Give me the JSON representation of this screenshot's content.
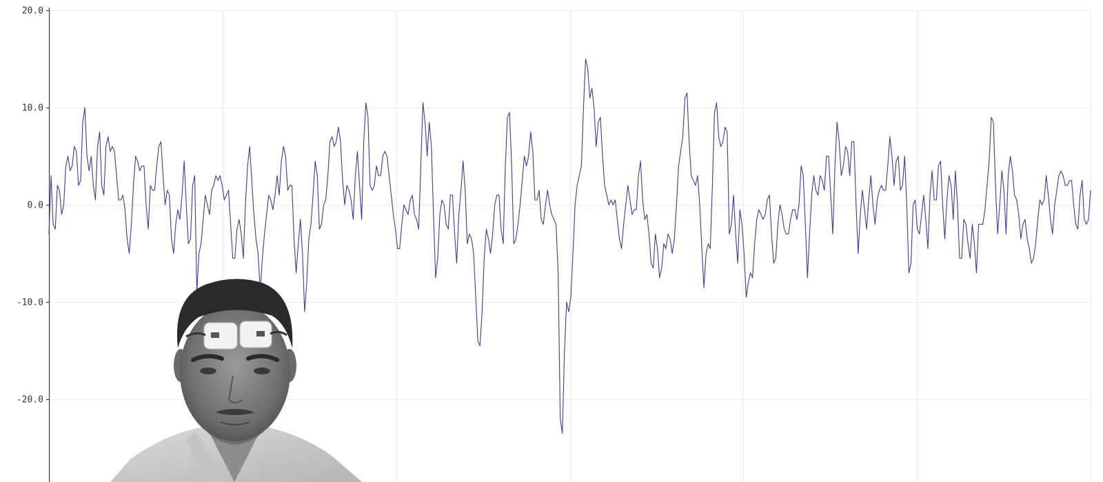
{
  "colors": {
    "series": "#3a3aa0",
    "grid": "#ececec",
    "axis": "#333333",
    "background": "#ffffff"
  },
  "overlay": {
    "icon": "webcam-person-photo"
  },
  "chart_data": {
    "type": "line",
    "title": "",
    "xlabel": "",
    "ylabel": "",
    "ylim": [
      -28.5,
      20
    ],
    "y_ticks": [
      20,
      10,
      0,
      -10,
      -20
    ],
    "y_tick_labels": [
      "20.0",
      "10.0",
      "0.0",
      "-10.0",
      "-20.0"
    ],
    "grid": true,
    "x_grid_count": 6,
    "series": [
      {
        "values": [
          -3,
          3,
          -2,
          -2.5,
          2,
          1.5,
          -1,
          0,
          4,
          5,
          3.5,
          4,
          6,
          5.5,
          2,
          2.5,
          8.5,
          10,
          5,
          3.5,
          5,
          2,
          0.5,
          6,
          7.5,
          2,
          1,
          6,
          7,
          5.5,
          6,
          5.5,
          3,
          0.5,
          0.5,
          1,
          -0.5,
          -3.5,
          -5,
          -2,
          2,
          5,
          4.5,
          3.5,
          4,
          4,
          0,
          -2.5,
          2,
          1.5,
          1.5,
          4,
          6,
          6.5,
          3,
          0,
          1.5,
          1,
          -3.5,
          -5,
          -2,
          -0.5,
          -1.5,
          1,
          4.5,
          0,
          -4,
          -3.5,
          2,
          3,
          -9,
          -5,
          -4,
          -1.5,
          1,
          0,
          -1,
          1.5,
          2,
          3,
          2.5,
          3,
          2,
          0.5,
          1,
          1.5,
          -2,
          -5.5,
          -5.5,
          -2.5,
          -1.5,
          -3,
          -5.5,
          0,
          4,
          6,
          2.5,
          -1,
          -3.5,
          -5,
          -9,
          -5.5,
          -3,
          -1,
          1,
          0.5,
          -0.5,
          1,
          3,
          1,
          4.5,
          6,
          5,
          1.5,
          2,
          2,
          -3.5,
          -7,
          -4,
          -1.5,
          -5,
          -11,
          -8,
          -3.5,
          -2,
          1,
          4.5,
          3,
          -2.5,
          -2,
          0,
          0.5,
          3,
          6.5,
          7,
          6,
          6.5,
          8,
          6.5,
          2.5,
          0,
          2,
          1.5,
          0.5,
          -1.5,
          3,
          5.5,
          2,
          -1.5,
          6.5,
          10.5,
          9,
          2,
          1.5,
          2,
          4,
          3,
          3,
          5,
          5.5,
          5,
          3,
          1,
          -1,
          -2.5,
          -4.5,
          -4.5,
          -2,
          0,
          -0.5,
          -1,
          0.5,
          1,
          -1,
          -1.5,
          -2.5,
          4,
          10.5,
          8.5,
          5,
          8.5,
          6,
          -1,
          -7.5,
          -5.5,
          -1,
          0.5,
          0,
          -2,
          -2.5,
          1,
          1,
          -3,
          -6,
          -1,
          1.5,
          4.5,
          1.5,
          -4,
          -3,
          -3.5,
          -5,
          -9.5,
          -14,
          -14.5,
          -11,
          -5.5,
          -2.5,
          -3.5,
          -5,
          -3,
          0,
          1,
          1,
          -2.5,
          -4,
          4,
          9,
          9.5,
          4,
          -4,
          -3.5,
          -2,
          0,
          2.5,
          5,
          4,
          5,
          7.5,
          5.5,
          0.5,
          0.5,
          1.5,
          -1.5,
          -2,
          0,
          1.5,
          0,
          -1,
          -1.5,
          -2,
          -7,
          -22,
          -23.5,
          -15,
          -10,
          -11,
          -9.5,
          -5,
          0,
          2,
          3,
          4,
          10,
          15,
          14,
          11,
          12,
          10,
          6,
          8.5,
          9,
          5,
          2,
          1,
          0,
          0.5,
          0,
          0.5,
          -1.5,
          -3.5,
          -4.5,
          -2,
          0,
          2,
          0.5,
          -1,
          -0.5,
          -0.5,
          3,
          4.5,
          0.5,
          -1.5,
          -1,
          -3,
          -6,
          -6.5,
          -3,
          -4.5,
          -7.5,
          -6.5,
          -4,
          -4.5,
          -3,
          -3.5,
          -5,
          -3.5,
          0,
          4,
          5.5,
          7,
          11,
          11.5,
          6.5,
          3,
          2.5,
          2,
          3,
          0,
          -4.5,
          -8.5,
          -5,
          -4,
          -4.5,
          2,
          9.5,
          10.5,
          7,
          6,
          6.5,
          8,
          7.5,
          -3,
          -2,
          1,
          -3,
          -6,
          -0.5,
          -2,
          -5,
          -9.5,
          -8,
          -7,
          -7.5,
          -4,
          -1.5,
          -0.5,
          -1,
          -1.5,
          -1,
          0.5,
          1,
          -3,
          -6,
          -5.5,
          -2,
          0,
          -1,
          -2.5,
          -3,
          -3,
          -1.5,
          -0.5,
          -0.5,
          -1.5,
          0,
          4,
          3,
          -2,
          -7.5,
          -3,
          1,
          3,
          1.5,
          1,
          3,
          2.5,
          1.5,
          5,
          5,
          1,
          -3,
          4,
          8.5,
          6.5,
          3,
          4,
          6,
          5.5,
          3,
          6.5,
          6.5,
          0,
          -5,
          -1,
          1.5,
          -0.5,
          -2.5,
          0.5,
          3,
          0,
          -2,
          0.5,
          1.5,
          2,
          1.5,
          1.5,
          4,
          7,
          5,
          2,
          4.5,
          5,
          1.5,
          2,
          5,
          0,
          -7,
          -6,
          0,
          0.5,
          -2.5,
          -3,
          -1,
          1,
          -1.5,
          -4.5,
          1,
          3.5,
          0.5,
          0.5,
          4,
          4.5,
          0,
          -3.5,
          0.5,
          3,
          2,
          -1.5,
          3.5,
          0,
          -5.5,
          -5.5,
          -1.5,
          -2,
          -4,
          -5.5,
          -2,
          -4,
          -7,
          -2,
          -2,
          -2,
          -0.5,
          2,
          4.5,
          9,
          8.5,
          2,
          -3,
          0,
          3.5,
          1.5,
          -3,
          3,
          5,
          3.5,
          1,
          0.5,
          -1,
          -3.5,
          -2,
          -1.5,
          -3.5,
          -4.5,
          -6,
          -5.5,
          -4,
          -1.5,
          0.5,
          0,
          0.5,
          3,
          1,
          -1.5,
          -3,
          0,
          1.5,
          3,
          3.5,
          3,
          2,
          2,
          2.5,
          2.5,
          0,
          -2,
          -2.5,
          1,
          2.5,
          -1.5,
          -2,
          -1.5,
          1.5
        ]
      }
    ]
  }
}
